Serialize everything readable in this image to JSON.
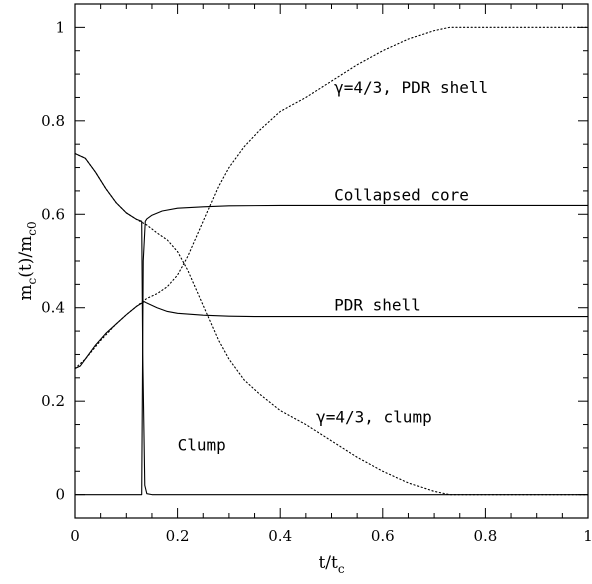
{
  "chart_data": {
    "type": "line",
    "xlabel": "t/t",
    "xlabel_sub": "c",
    "ylabel_parts": [
      "m",
      "c",
      "(t)/m",
      "c0"
    ],
    "xlim": [
      0,
      1
    ],
    "ylim": [
      -0.05,
      1.05
    ],
    "xticks": [
      0,
      0.2,
      0.4,
      0.6,
      0.8,
      1
    ],
    "xtick_labels": [
      "0",
      "0.2",
      "0.4",
      "0.6",
      "0.8",
      "1"
    ],
    "yticks": [
      0,
      0.2,
      0.4,
      0.6,
      0.8,
      1
    ],
    "ytick_labels": [
      "0",
      "0.2",
      "0.4",
      "0.6",
      "0.8",
      "1"
    ],
    "grid": false,
    "series": [
      {
        "key": "collapsed-core",
        "style": "solid",
        "points": [
          [
            0,
            0
          ],
          [
            0.13,
            0
          ],
          [
            0.133,
            0.5
          ],
          [
            0.137,
            0.585
          ],
          [
            0.14,
            0.59
          ],
          [
            0.15,
            0.598
          ],
          [
            0.17,
            0.607
          ],
          [
            0.2,
            0.613
          ],
          [
            0.25,
            0.616
          ],
          [
            0.3,
            0.618
          ],
          [
            0.4,
            0.619
          ],
          [
            0.6,
            0.619
          ],
          [
            0.8,
            0.619
          ],
          [
            1,
            0.619
          ]
        ]
      },
      {
        "key": "clump",
        "style": "solid",
        "points": [
          [
            0,
            0.73
          ],
          [
            0.02,
            0.72
          ],
          [
            0.04,
            0.69
          ],
          [
            0.06,
            0.655
          ],
          [
            0.08,
            0.625
          ],
          [
            0.1,
            0.603
          ],
          [
            0.12,
            0.589
          ],
          [
            0.13,
            0.585
          ],
          [
            0.132,
            0.3
          ],
          [
            0.136,
            0.02
          ],
          [
            0.14,
            0.002
          ],
          [
            0.15,
            0
          ],
          [
            0.3,
            0
          ],
          [
            0.6,
            0
          ],
          [
            1,
            0
          ]
        ]
      },
      {
        "key": "pdr-shell",
        "style": "solid",
        "points": [
          [
            0,
            0.27
          ],
          [
            0.01,
            0.275
          ],
          [
            0.02,
            0.29
          ],
          [
            0.04,
            0.32
          ],
          [
            0.06,
            0.345
          ],
          [
            0.08,
            0.365
          ],
          [
            0.1,
            0.385
          ],
          [
            0.12,
            0.403
          ],
          [
            0.135,
            0.413
          ],
          [
            0.14,
            0.41
          ],
          [
            0.16,
            0.4
          ],
          [
            0.18,
            0.392
          ],
          [
            0.2,
            0.388
          ],
          [
            0.25,
            0.384
          ],
          [
            0.3,
            0.382
          ],
          [
            0.35,
            0.381
          ],
          [
            0.5,
            0.381
          ],
          [
            0.75,
            0.381
          ],
          [
            1,
            0.381
          ]
        ]
      },
      {
        "key": "gamma-pdr-shell",
        "style": "dotted",
        "points": [
          [
            0,
            0.27
          ],
          [
            0.02,
            0.29
          ],
          [
            0.05,
            0.33
          ],
          [
            0.08,
            0.365
          ],
          [
            0.1,
            0.385
          ],
          [
            0.12,
            0.403
          ],
          [
            0.14,
            0.42
          ],
          [
            0.16,
            0.43
          ],
          [
            0.18,
            0.445
          ],
          [
            0.2,
            0.47
          ],
          [
            0.22,
            0.51
          ],
          [
            0.24,
            0.56
          ],
          [
            0.26,
            0.61
          ],
          [
            0.28,
            0.66
          ],
          [
            0.3,
            0.7
          ],
          [
            0.33,
            0.745
          ],
          [
            0.36,
            0.78
          ],
          [
            0.4,
            0.82
          ],
          [
            0.45,
            0.85
          ],
          [
            0.5,
            0.885
          ],
          [
            0.55,
            0.92
          ],
          [
            0.6,
            0.95
          ],
          [
            0.65,
            0.975
          ],
          [
            0.7,
            0.993
          ],
          [
            0.73,
            1
          ],
          [
            0.8,
            1
          ],
          [
            0.9,
            1
          ],
          [
            1,
            1
          ]
        ]
      },
      {
        "key": "gamma-clump",
        "style": "dotted",
        "points": [
          [
            0,
            0.73
          ],
          [
            0.02,
            0.72
          ],
          [
            0.04,
            0.69
          ],
          [
            0.06,
            0.655
          ],
          [
            0.08,
            0.625
          ],
          [
            0.1,
            0.603
          ],
          [
            0.12,
            0.589
          ],
          [
            0.14,
            0.577
          ],
          [
            0.16,
            0.56
          ],
          [
            0.18,
            0.545
          ],
          [
            0.2,
            0.52
          ],
          [
            0.22,
            0.48
          ],
          [
            0.24,
            0.43
          ],
          [
            0.26,
            0.38
          ],
          [
            0.28,
            0.33
          ],
          [
            0.3,
            0.29
          ],
          [
            0.33,
            0.245
          ],
          [
            0.36,
            0.215
          ],
          [
            0.4,
            0.18
          ],
          [
            0.45,
            0.15
          ],
          [
            0.5,
            0.115
          ],
          [
            0.55,
            0.08
          ],
          [
            0.6,
            0.05
          ],
          [
            0.65,
            0.025
          ],
          [
            0.7,
            0.007
          ],
          [
            0.73,
            0
          ],
          [
            0.8,
            0
          ],
          [
            1,
            0
          ]
        ]
      }
    ],
    "annotations": [
      {
        "key": "gamma-pdr-shell",
        "text": "γ=4/3, PDR shell",
        "x": 0.505,
        "y": 0.87
      },
      {
        "key": "collapsed-core",
        "text": "Collapsed core",
        "x": 0.505,
        "y": 0.64
      },
      {
        "key": "pdr-shell",
        "text": "PDR shell",
        "x": 0.505,
        "y": 0.405
      },
      {
        "key": "gamma-clump",
        "text": "γ=4/3, clump",
        "x": 0.47,
        "y": 0.165
      },
      {
        "key": "clump",
        "text": "Clump",
        "x": 0.2,
        "y": 0.105
      }
    ]
  }
}
